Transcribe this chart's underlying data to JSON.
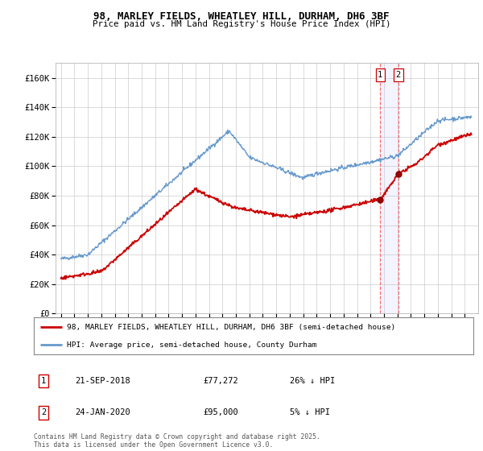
{
  "title": "98, MARLEY FIELDS, WHEATLEY HILL, DURHAM, DH6 3BF",
  "subtitle": "Price paid vs. HM Land Registry's House Price Index (HPI)",
  "ylim": [
    0,
    170000
  ],
  "yticks": [
    0,
    20000,
    40000,
    60000,
    80000,
    100000,
    120000,
    140000,
    160000
  ],
  "ytick_labels": [
    "£0",
    "£20K",
    "£40K",
    "£60K",
    "£80K",
    "£100K",
    "£120K",
    "£140K",
    "£160K"
  ],
  "x_start_year": 1995,
  "x_end_year": 2025,
  "marker1": {
    "date": 2018.72,
    "label": "1",
    "price": 77272,
    "text": "21-SEP-2018",
    "price_text": "£77,272",
    "pct_text": "26% ↓ HPI"
  },
  "marker2": {
    "date": 2020.07,
    "label": "2",
    "price": 95000,
    "text": "24-JAN-2020",
    "price_text": "£95,000",
    "pct_text": "5% ↓ HPI"
  },
  "legend_line1": "98, MARLEY FIELDS, WHEATLEY HILL, DURHAM, DH6 3BF (semi-detached house)",
  "legend_line2": "HPI: Average price, semi-detached house, County Durham",
  "footer": "Contains HM Land Registry data © Crown copyright and database right 2025.\nThis data is licensed under the Open Government Licence v3.0.",
  "line_color_red": "#cc0000",
  "line_color_blue": "#6699cc",
  "grid_color": "#cccccc"
}
